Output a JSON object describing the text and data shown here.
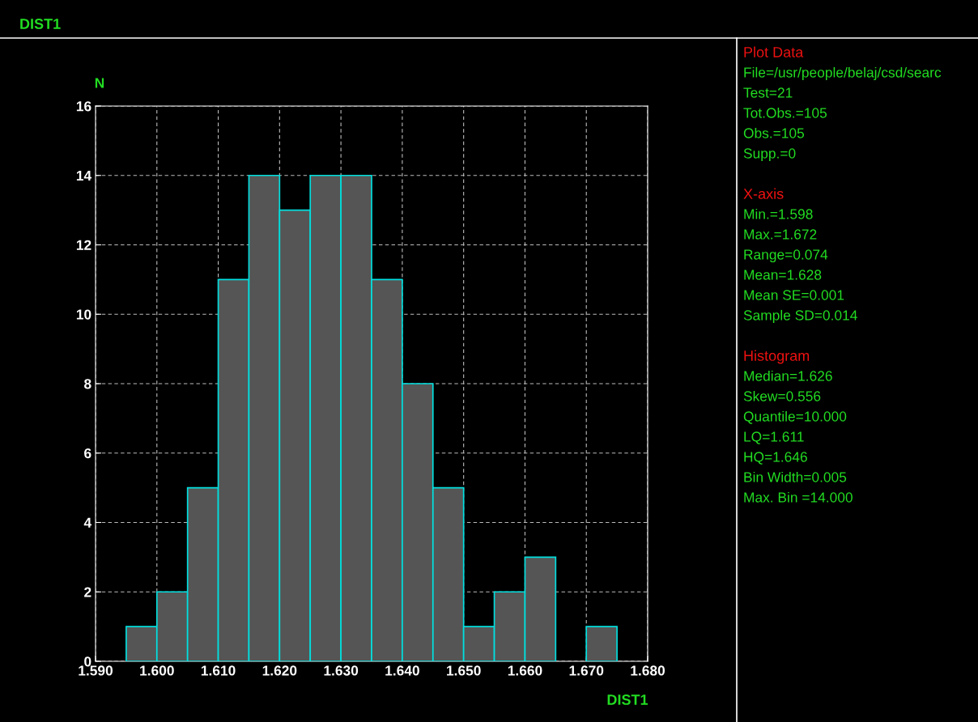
{
  "chart_data": [
    {
      "type": "histogram",
      "title": "DIST1",
      "xlabel": "DIST1",
      "ylabel": "N",
      "color": "#555555",
      "bins": [
        1.595,
        1.6,
        1.605,
        1.61,
        1.615,
        1.62,
        1.625,
        1.63,
        1.635,
        1.64,
        1.645,
        1.65,
        1.655,
        1.66,
        1.665,
        1.67,
        1.675
      ],
      "values": [
        1,
        2,
        5,
        11,
        14,
        13,
        14,
        14,
        11,
        8,
        5,
        1,
        2,
        3,
        0,
        1
      ],
      "xlim": [
        1.59,
        1.68
      ],
      "xticks": [
        {
          "value": 1.59,
          "label": "1.590"
        },
        {
          "value": 1.6,
          "label": "1.600"
        },
        {
          "value": 1.61,
          "label": "1.610"
        },
        {
          "value": 1.62,
          "label": "1.620"
        },
        {
          "value": 1.63,
          "label": "1.630"
        },
        {
          "value": 1.64,
          "label": "1.640"
        },
        {
          "value": 1.65,
          "label": "1.650"
        },
        {
          "value": 1.66,
          "label": "1.660"
        },
        {
          "value": 1.67,
          "label": "1.670"
        },
        {
          "value": 1.68,
          "label": "1.680"
        }
      ],
      "ylim": [
        0,
        16
      ],
      "yticks": [
        0,
        2,
        4,
        6,
        8,
        10,
        12,
        14,
        16
      ],
      "grid": true
    },
    {
      "type": "other",
      "title": "Plot Data",
      "annotations": [
        "File=/usr/people/belaj/csd/searc",
        "Test=21",
        "Tot.Obs.=105",
        "Obs.=105",
        "Supp.=0"
      ]
    },
    {
      "type": "other",
      "title": "X-axis",
      "annotations": [
        "Min.=1.598",
        "Max.=1.672",
        "Range=0.074",
        "Mean=1.628",
        "Mean SE=0.001",
        "Sample SD=0.014"
      ]
    },
    {
      "type": "other",
      "title": "Histogram",
      "annotations": [
        "Median=1.626",
        "Skew=0.556",
        "Quantile=10.000",
        "LQ=1.611",
        "HQ=1.646",
        "Bin Width=0.005",
        "Max. Bin =14.000"
      ]
    }
  ]
}
